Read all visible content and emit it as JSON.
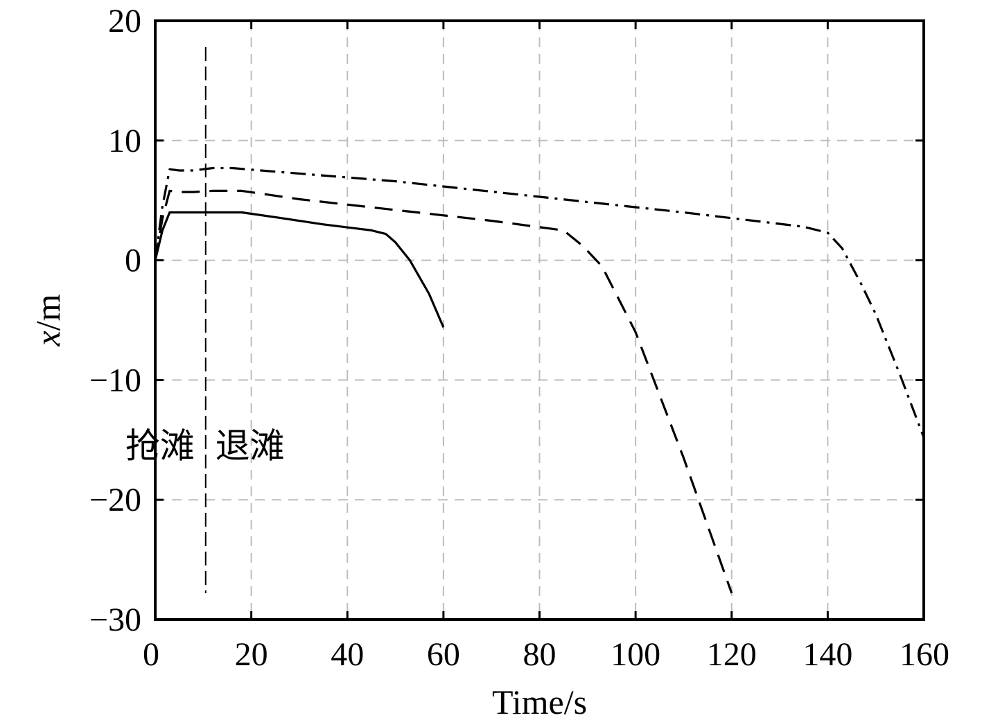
{
  "chart_data": {
    "type": "line",
    "xlabel": "Time/s",
    "ylabel_italic": "x",
    "ylabel_unit": "/m",
    "xlim": [
      0,
      160
    ],
    "ylim": [
      -30,
      20
    ],
    "xticks": [
      0,
      20,
      40,
      60,
      80,
      100,
      120,
      140,
      160
    ],
    "yticks": [
      20,
      10,
      0,
      -10,
      -20,
      -30
    ],
    "ytick_labels": [
      "20",
      "10",
      "0",
      "−10",
      "−20",
      "−30"
    ],
    "grid": true,
    "series": [
      {
        "style": "solid",
        "x": [
          0,
          1.5,
          3,
          5,
          8,
          12,
          18,
          25,
          35,
          45,
          48,
          50,
          53,
          57,
          60
        ],
        "y": [
          0,
          2.5,
          4.0,
          4.0,
          4.0,
          4.0,
          4.0,
          3.6,
          3.0,
          2.5,
          2.2,
          1.5,
          0,
          -2.8,
          -5.6
        ]
      },
      {
        "style": "dashed",
        "x": [
          0,
          1.5,
          3,
          5,
          8,
          12,
          18,
          30,
          50,
          70,
          85,
          89,
          93,
          100,
          110,
          120
        ],
        "y": [
          0,
          3.5,
          5.8,
          5.7,
          5.7,
          5.8,
          5.8,
          5.1,
          4.2,
          3.3,
          2.5,
          1.2,
          -0.5,
          -6.0,
          -16.5,
          -27.8
        ]
      },
      {
        "style": "dashdot",
        "x": [
          0,
          1.5,
          3,
          5,
          8,
          12,
          16,
          25,
          50,
          80,
          110,
          135,
          140,
          143,
          147,
          150,
          155,
          160
        ],
        "y": [
          0,
          4.5,
          7.6,
          7.5,
          7.5,
          7.7,
          7.7,
          7.4,
          6.6,
          5.3,
          4.0,
          2.8,
          2.3,
          1.0,
          -2.0,
          -4.5,
          -9.5,
          -14.8
        ]
      }
    ],
    "marker_line": {
      "x": 10.5,
      "y_from": -27.8,
      "y_to": 17.8
    },
    "annotations": [
      {
        "text": "抢滩",
        "x": 8.2,
        "y": -16.5
      },
      {
        "text": "退滩",
        "x": 12.5,
        "y": -16.5
      }
    ]
  }
}
